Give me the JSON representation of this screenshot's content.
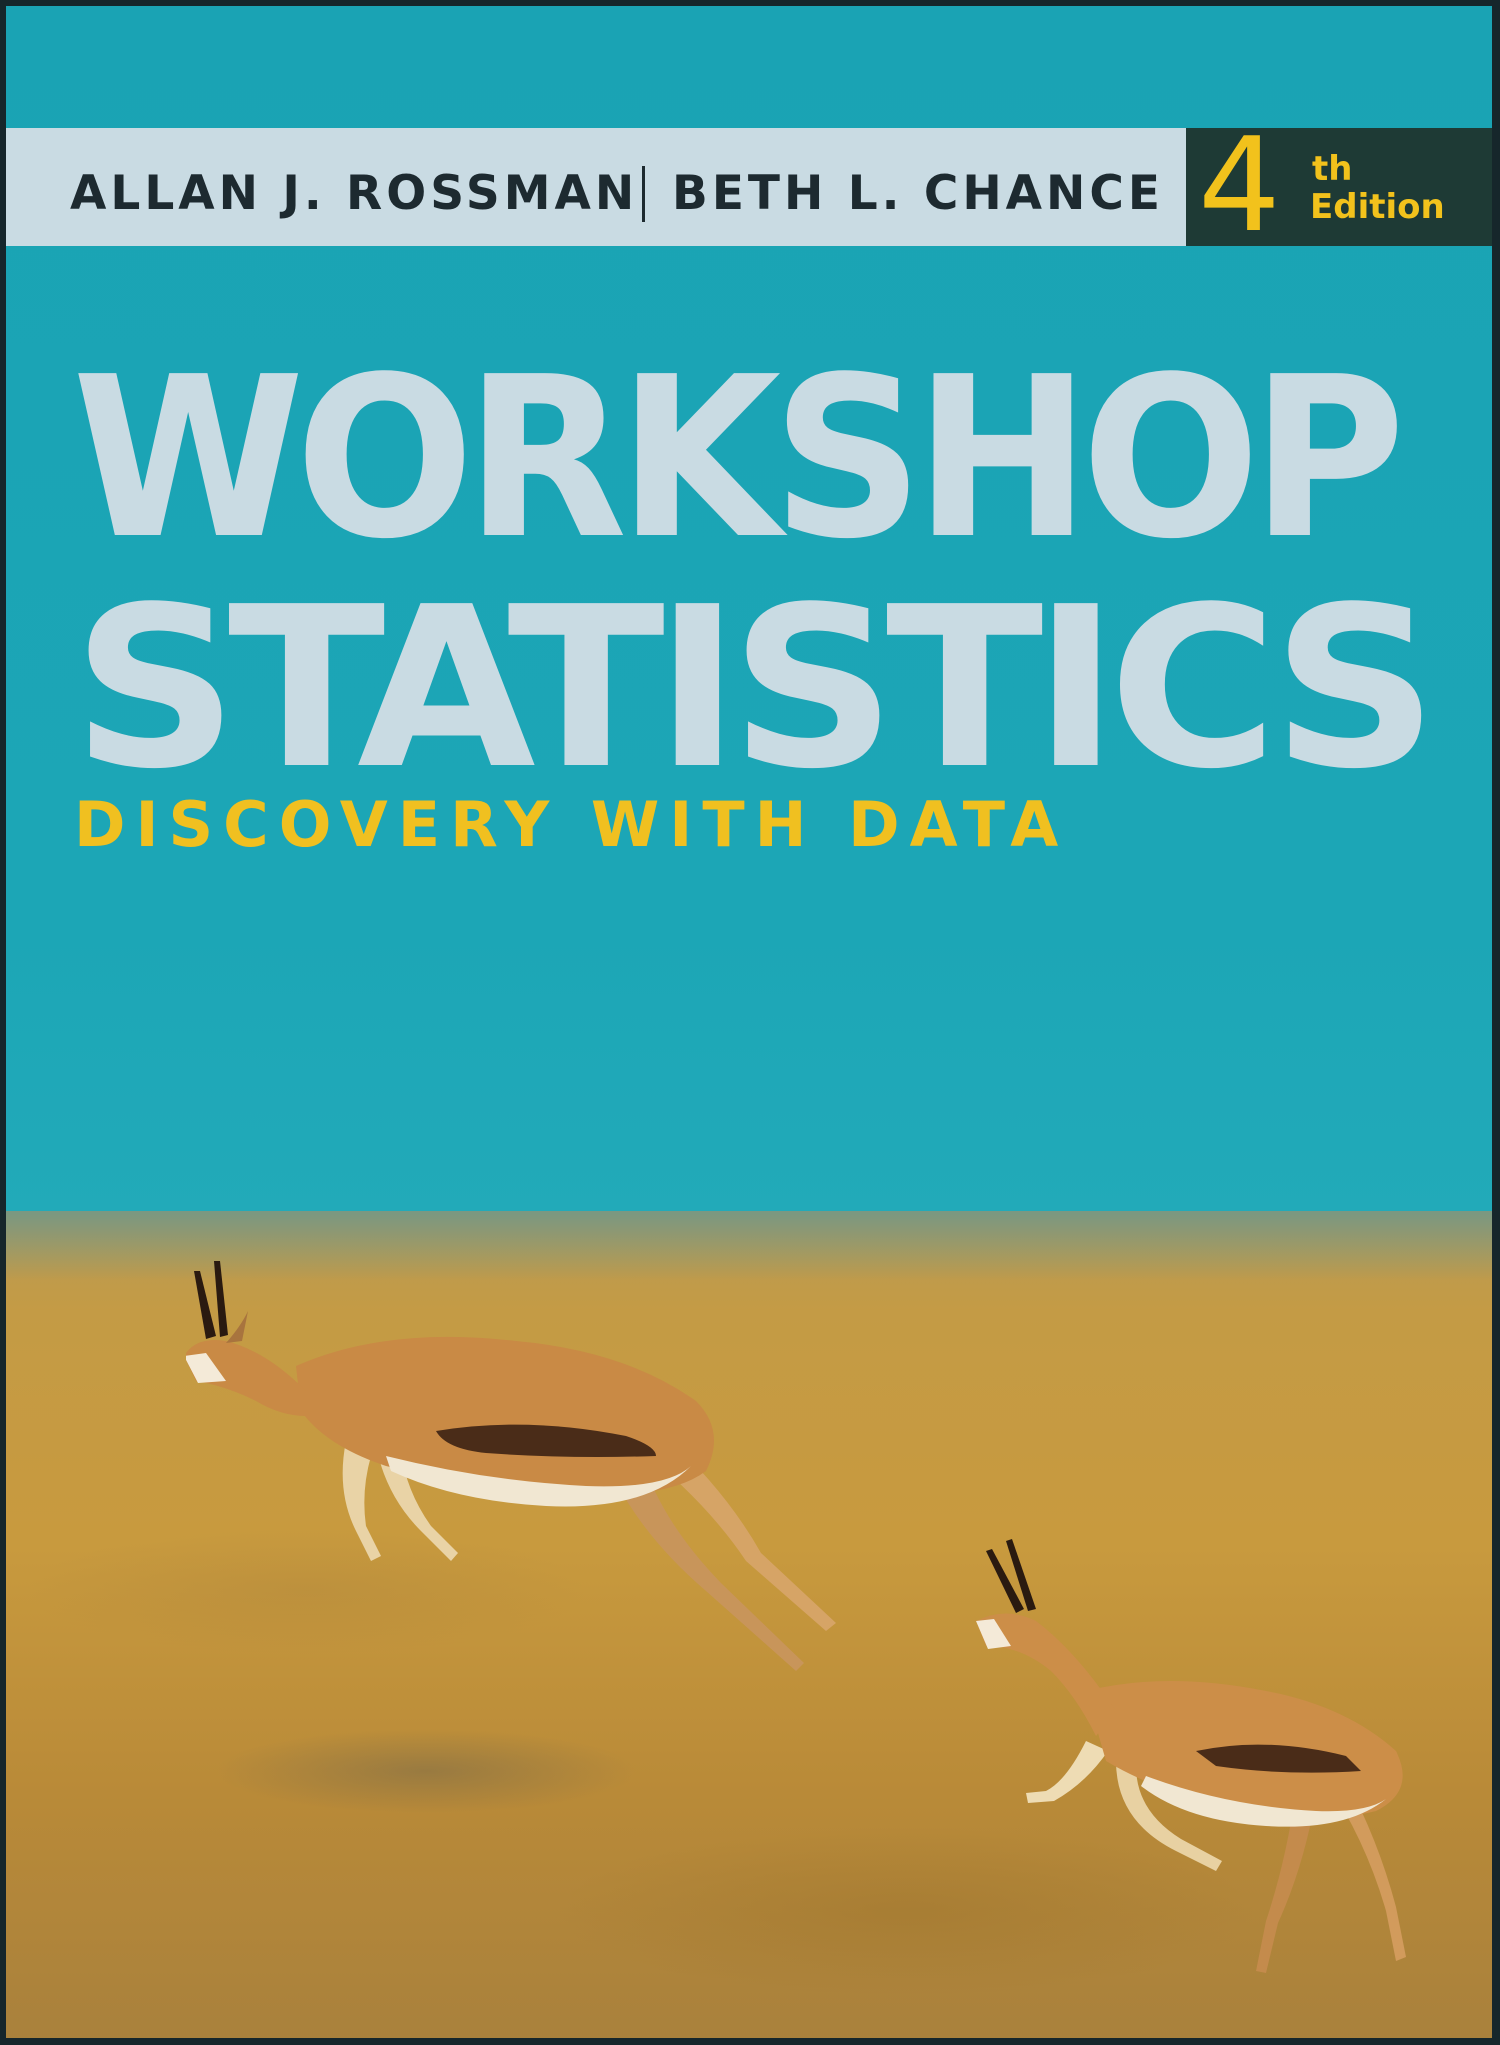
{
  "authors": [
    "ALLAN J. ROSSMAN",
    "BETH L. CHANCE"
  ],
  "edition": {
    "number": "4",
    "suffix": "th",
    "word": "Edition"
  },
  "title_lines": [
    "WORKSHOP",
    "STATISTICS"
  ],
  "subtitle": "DISCOVERY WITH DATA",
  "colors": {
    "sky": "#1ca6b6",
    "band": "#c9dbe3",
    "accent": "#f2c21c",
    "edition_box": "#1e3a35",
    "grass": "#c89a3e"
  }
}
